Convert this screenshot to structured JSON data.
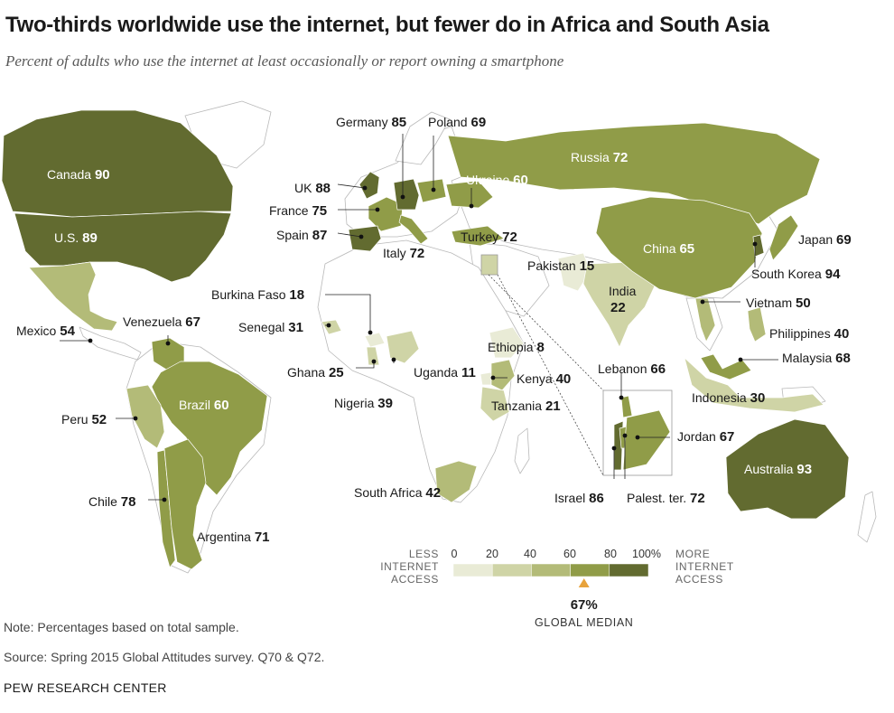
{
  "title": "Two-thirds worldwide use the internet, but fewer do in Africa and South Asia",
  "subtitle": "Percent of adults who use the internet at least occasionally or report owning a smartphone",
  "countries": [
    {
      "name": "Canada",
      "value": 90
    },
    {
      "name": "U.S.",
      "value": 89
    },
    {
      "name": "Mexico",
      "value": 54
    },
    {
      "name": "Venezuela",
      "value": 67
    },
    {
      "name": "Brazil",
      "value": 60
    },
    {
      "name": "Peru",
      "value": 52
    },
    {
      "name": "Chile",
      "value": 78
    },
    {
      "name": "Argentina",
      "value": 71
    },
    {
      "name": "UK",
      "value": 88
    },
    {
      "name": "France",
      "value": 75
    },
    {
      "name": "Spain",
      "value": 87
    },
    {
      "name": "Germany",
      "value": 85
    },
    {
      "name": "Poland",
      "value": 69
    },
    {
      "name": "Italy",
      "value": 72
    },
    {
      "name": "Ukraine",
      "value": 60
    },
    {
      "name": "Russia",
      "value": 72
    },
    {
      "name": "Turkey",
      "value": 72
    },
    {
      "name": "Burkina Faso",
      "value": 18
    },
    {
      "name": "Senegal",
      "value": 31
    },
    {
      "name": "Ghana",
      "value": 25
    },
    {
      "name": "Nigeria",
      "value": 39
    },
    {
      "name": "Uganda",
      "value": 11
    },
    {
      "name": "Ethiopia",
      "value": 8
    },
    {
      "name": "Kenya",
      "value": 40
    },
    {
      "name": "Tanzania",
      "value": 21
    },
    {
      "name": "South Africa",
      "value": 42
    },
    {
      "name": "Pakistan",
      "value": 15
    },
    {
      "name": "India",
      "value": 22
    },
    {
      "name": "China",
      "value": 65
    },
    {
      "name": "Japan",
      "value": 69
    },
    {
      "name": "South Korea",
      "value": 94
    },
    {
      "name": "Vietnam",
      "value": 50
    },
    {
      "name": "Philippines",
      "value": 40
    },
    {
      "name": "Malaysia",
      "value": 68
    },
    {
      "name": "Indonesia",
      "value": 30
    },
    {
      "name": "Australia",
      "value": 93
    },
    {
      "name": "Lebanon",
      "value": 66
    },
    {
      "name": "Jordan",
      "value": 67
    },
    {
      "name": "Israel",
      "value": 86
    },
    {
      "name": "Palest. ter.",
      "value": 72
    }
  ],
  "legend": {
    "less_label": [
      "LESS",
      "INTERNET",
      "ACCESS"
    ],
    "more_label": [
      "MORE",
      "INTERNET",
      "ACCESS"
    ],
    "ticks": [
      "0",
      "20",
      "40",
      "60",
      "80",
      "100%"
    ],
    "bins": [
      0,
      20,
      40,
      60,
      80,
      100
    ],
    "colors": [
      "#e9ebd6",
      "#cfd4a6",
      "#b3bb78",
      "#909c48",
      "#626b30"
    ],
    "median_value": "67%",
    "median_label": "GLOBAL MEDIAN",
    "median_marker_color": "#e8a33c"
  },
  "footer": {
    "note": "Note: Percentages based on total sample.",
    "source": "Source: Spring 2015 Global Attitudes survey. Q70 & Q72.",
    "org": "PEW RESEARCH CENTER"
  }
}
